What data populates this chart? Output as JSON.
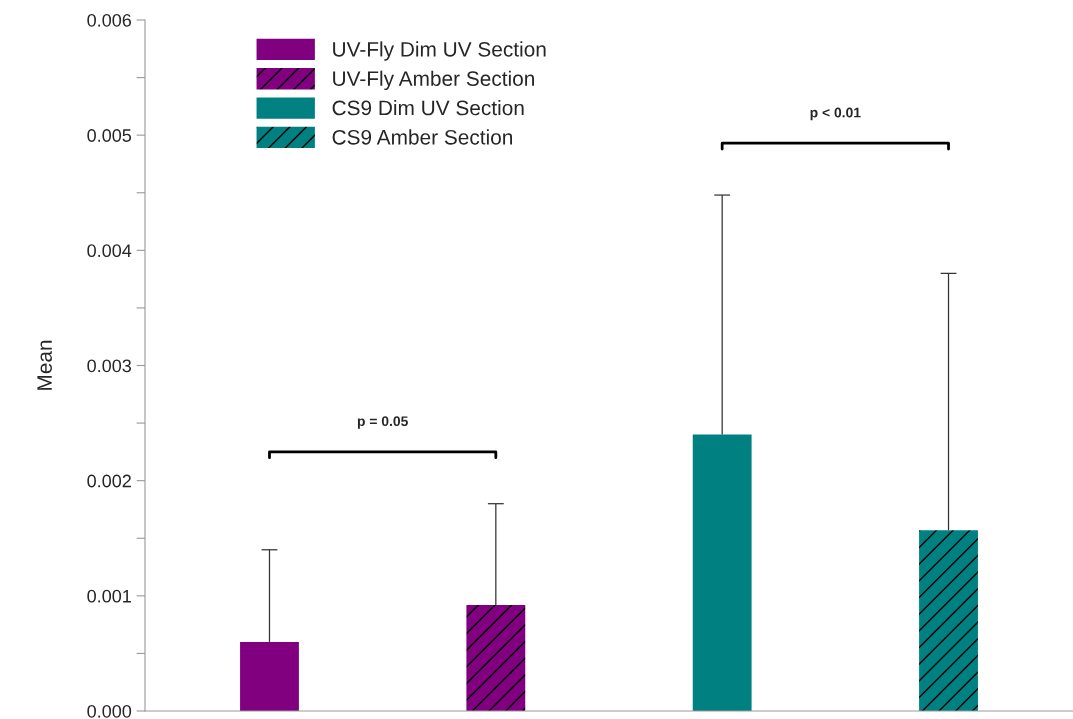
{
  "chart_data": {
    "type": "bar",
    "ylabel": "Mean",
    "categories": [
      null,
      null,
      null,
      null
    ],
    "series": [
      {
        "name": "UV-Fly Dim UV Section",
        "color": "#800080",
        "values": [
          0.0006,
          null,
          null,
          null
        ],
        "errors": [
          [
            0.0006,
            0.0014
          ],
          null,
          null,
          null
        ]
      },
      {
        "name": "UV-Fly Amber Section",
        "color": "#800080",
        "values": [
          null,
          0.00092,
          null,
          null
        ],
        "errors": [
          null,
          [
            0.00092,
            0.0018
          ],
          null,
          null
        ]
      },
      {
        "name": "CS9 Dim UV Section",
        "color": "#008080",
        "values": [
          null,
          null,
          0.0024,
          null
        ],
        "errors": [
          null,
          null,
          [
            0.0024,
            0.00448
          ],
          null
        ]
      },
      {
        "name": "CS9 Amber Section",
        "color": "#008080",
        "values": [
          null,
          null,
          null,
          0.00157
        ],
        "errors": [
          null,
          null,
          null,
          [
            0.00157,
            0.0038
          ]
        ]
      }
    ],
    "annotations": [
      "p = 0.05",
      "p < 0.01"
    ],
    "ylim": [
      0,
      0.006
    ],
    "yticks": [
      {
        "value": 0,
        "label": "0.000"
      },
      {
        "value": 0.0005,
        "label": null
      },
      0.001,
      {
        "value": 0.0015,
        "label": null
      },
      0.002,
      {
        "value": 0.0025,
        "label": null
      },
      0.003,
      {
        "value": 0.0035,
        "label": null
      },
      0.004,
      {
        "value": 0.0045,
        "label": null
      },
      0.005,
      {
        "value": 0.0055,
        "label": null
      },
      0.006
    ],
    "grid": false,
    "legend": "top left"
  }
}
